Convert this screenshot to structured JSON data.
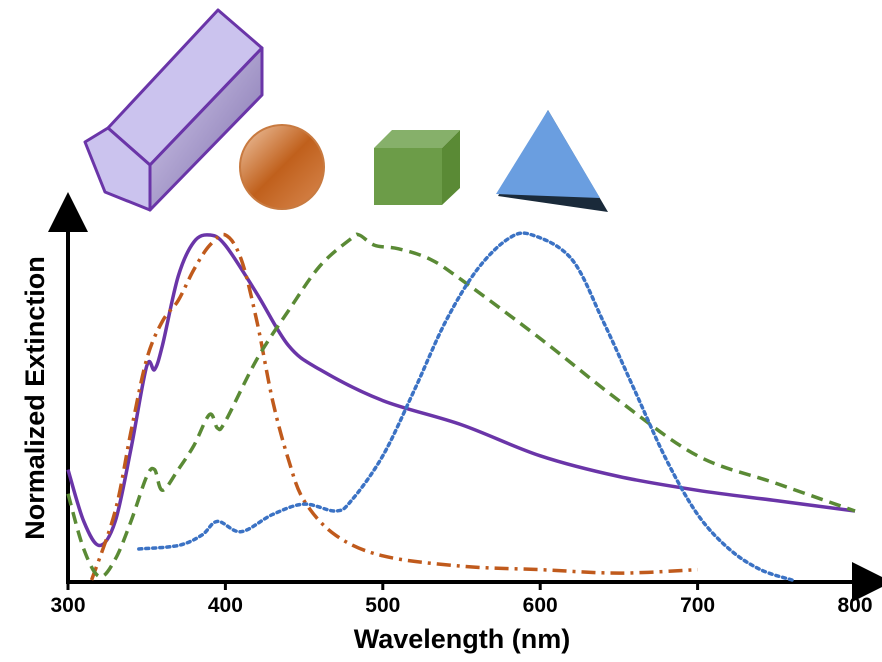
{
  "chart_data": {
    "type": "line",
    "x_label": "Wavelength (nm)",
    "y_label": "Normalized Extinction",
    "xlim": [
      300,
      800
    ],
    "xticks": [
      300,
      400,
      500,
      600,
      700,
      800
    ],
    "ylim": [
      0,
      1.1
    ],
    "series": [
      {
        "color": "#6a35a8",
        "dash": "solid",
        "x": [
          300,
          310,
          320,
          330,
          340,
          350,
          355,
          360,
          370,
          380,
          390,
          400,
          420,
          440,
          460,
          500,
          550,
          600,
          650,
          700,
          750,
          800
        ],
        "values": [
          0.32,
          0.17,
          0.1,
          0.17,
          0.38,
          0.62,
          0.61,
          0.68,
          0.88,
          0.98,
          1.0,
          0.97,
          0.83,
          0.68,
          0.61,
          0.52,
          0.45,
          0.36,
          0.3,
          0.26,
          0.23,
          0.2
        ]
      },
      {
        "color": "#c05a1c",
        "dash": "dashdot",
        "x": [
          315,
          330,
          340,
          350,
          360,
          370,
          380,
          390,
          400,
          410,
          420,
          430,
          440,
          450,
          470,
          500,
          550,
          600,
          650,
          700
        ],
        "values": [
          0.0,
          0.2,
          0.43,
          0.64,
          0.75,
          0.81,
          0.9,
          0.97,
          1.0,
          0.93,
          0.75,
          0.52,
          0.35,
          0.23,
          0.13,
          0.07,
          0.04,
          0.03,
          0.02,
          0.03
        ]
      },
      {
        "color": "#5a8a35",
        "dash": "dashed",
        "x": [
          300,
          310,
          320,
          330,
          340,
          350,
          355,
          360,
          370,
          380,
          390,
          395,
          400,
          420,
          440,
          460,
          480,
          485,
          495,
          510,
          530,
          550,
          600,
          650,
          700,
          750,
          800
        ],
        "values": [
          0.25,
          0.09,
          0.01,
          0.06,
          0.17,
          0.3,
          0.32,
          0.26,
          0.32,
          0.39,
          0.48,
          0.44,
          0.46,
          0.64,
          0.78,
          0.91,
          0.99,
          1.0,
          0.97,
          0.96,
          0.93,
          0.87,
          0.7,
          0.52,
          0.36,
          0.28,
          0.2
        ]
      },
      {
        "color": "#3b72c4",
        "dash": "dotted",
        "x": [
          345,
          370,
          385,
          395,
          410,
          430,
          450,
          470,
          480,
          500,
          520,
          540,
          560,
          580,
          595,
          620,
          640,
          660,
          680,
          700,
          720,
          740,
          760
        ],
        "values": [
          0.09,
          0.1,
          0.13,
          0.17,
          0.14,
          0.19,
          0.22,
          0.2,
          0.23,
          0.36,
          0.55,
          0.75,
          0.9,
          0.99,
          1.0,
          0.93,
          0.75,
          0.55,
          0.35,
          0.19,
          0.09,
          0.03,
          0.0
        ]
      }
    ]
  }
}
